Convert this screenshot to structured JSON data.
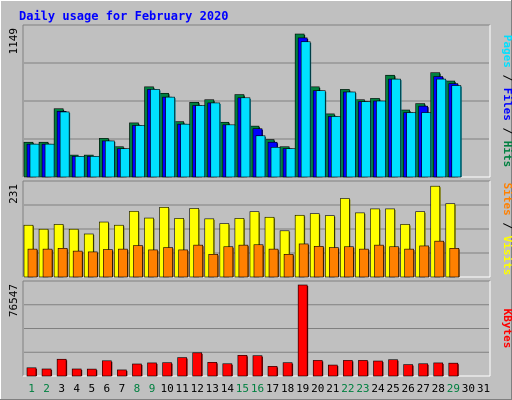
{
  "chart_data": [
    {
      "type": "bar",
      "title": "Daily usage for February 2020",
      "ymax_label": "1149",
      "ylim": [
        0,
        1149
      ],
      "grid": true,
      "legend": [
        "Hits",
        "Files",
        "Pages"
      ],
      "categories": [
        "1",
        "2",
        "3",
        "4",
        "5",
        "6",
        "7",
        "8",
        "9",
        "10",
        "11",
        "12",
        "13",
        "14",
        "15",
        "16",
        "17",
        "18",
        "19",
        "20",
        "21",
        "22",
        "23",
        "24",
        "25",
        "26",
        "27",
        "28",
        "29",
        "30",
        "31"
      ],
      "series": [
        {
          "name": "Hits",
          "color": "#008040",
          "values": [
            270,
            270,
            530,
            170,
            170,
            300,
            235,
            420,
            700,
            650,
            430,
            580,
            600,
            425,
            640,
            395,
            290,
            235,
            1110,
            700,
            490,
            680,
            600,
            610,
            790,
            520,
            570,
            810,
            745,
            0,
            0
          ]
        },
        {
          "name": "Files",
          "color": "#0000ff",
          "values": [
            255,
            255,
            510,
            160,
            160,
            280,
            220,
            400,
            680,
            620,
            410,
            555,
            575,
            405,
            615,
            375,
            270,
            220,
            1080,
            670,
            470,
            660,
            585,
            590,
            760,
            500,
            550,
            780,
            725,
            0,
            0
          ]
        },
        {
          "name": "Pages",
          "color": "#00e0ff",
          "values": [
            255,
            255,
            505,
            160,
            160,
            280,
            220,
            400,
            680,
            620,
            410,
            555,
            575,
            405,
            615,
            320,
            230,
            220,
            1050,
            670,
            470,
            660,
            585,
            590,
            760,
            500,
            500,
            760,
            710,
            0,
            0
          ]
        }
      ]
    },
    {
      "type": "bar",
      "ymax_label": "231",
      "ylim": [
        0,
        231
      ],
      "grid": true,
      "legend": [
        "Visits",
        "Sites"
      ],
      "categories": [
        "1",
        "2",
        "3",
        "4",
        "5",
        "6",
        "7",
        "8",
        "9",
        "10",
        "11",
        "12",
        "13",
        "14",
        "15",
        "16",
        "17",
        "18",
        "19",
        "20",
        "21",
        "22",
        "23",
        "24",
        "25",
        "26",
        "27",
        "28",
        "29",
        "30",
        "31"
      ],
      "series": [
        {
          "name": "Visits",
          "color": "#ffff00",
          "values": [
            130,
            120,
            132,
            120,
            108,
            138,
            130,
            165,
            148,
            175,
            147,
            172,
            146,
            134,
            147,
            164,
            150,
            116,
            155,
            159,
            154,
            197,
            161,
            171,
            171,
            132,
            164,
            228,
            184,
            0,
            0
          ]
        },
        {
          "name": "Sites",
          "color": "#ff8000",
          "values": [
            70,
            70,
            72,
            65,
            63,
            69,
            70,
            79,
            68,
            74,
            68,
            80,
            57,
            76,
            80,
            81,
            70,
            57,
            83,
            77,
            74,
            76,
            70,
            80,
            76,
            70,
            78,
            90,
            72,
            0,
            0
          ]
        }
      ]
    },
    {
      "type": "bar",
      "ymax_label": "76547",
      "ylim": [
        0,
        76547
      ],
      "grid": true,
      "legend": [
        "KBytes"
      ],
      "categories": [
        "1",
        "2",
        "3",
        "4",
        "5",
        "6",
        "7",
        "8",
        "9",
        "10",
        "11",
        "12",
        "13",
        "14",
        "15",
        "16",
        "17",
        "18",
        "19",
        "20",
        "21",
        "22",
        "23",
        "24",
        "25",
        "26",
        "27",
        "28",
        "29",
        "30",
        "31"
      ],
      "series": [
        {
          "name": "KBytes",
          "color": "#ff0000",
          "values": [
            6900,
            5900,
            14100,
            5900,
            5800,
            12800,
            5100,
            10100,
            11000,
            11200,
            15500,
            19500,
            11500,
            10300,
            17400,
            17100,
            8100,
            11200,
            76547,
            13100,
            9200,
            13100,
            13100,
            12600,
            13700,
            9600,
            10300,
            11000,
            10800,
            0,
            0
          ]
        }
      ]
    }
  ],
  "x_labels": [
    "1",
    "2",
    "3",
    "4",
    "5",
    "6",
    "7",
    "8",
    "9",
    "10",
    "11",
    "12",
    "13",
    "14",
    "15",
    "16",
    "17",
    "18",
    "19",
    "20",
    "21",
    "22",
    "23",
    "24",
    "25",
    "26",
    "27",
    "28",
    "29",
    "30",
    "31"
  ],
  "weekend_days": [
    1,
    2,
    8,
    9,
    15,
    16,
    22,
    23,
    29
  ],
  "colors": {
    "background": "#c0c0c0",
    "plot_background": "#c0c0c0",
    "title": "#0000ff",
    "weekend_label": "#008040",
    "weekday_label": "#000000"
  }
}
